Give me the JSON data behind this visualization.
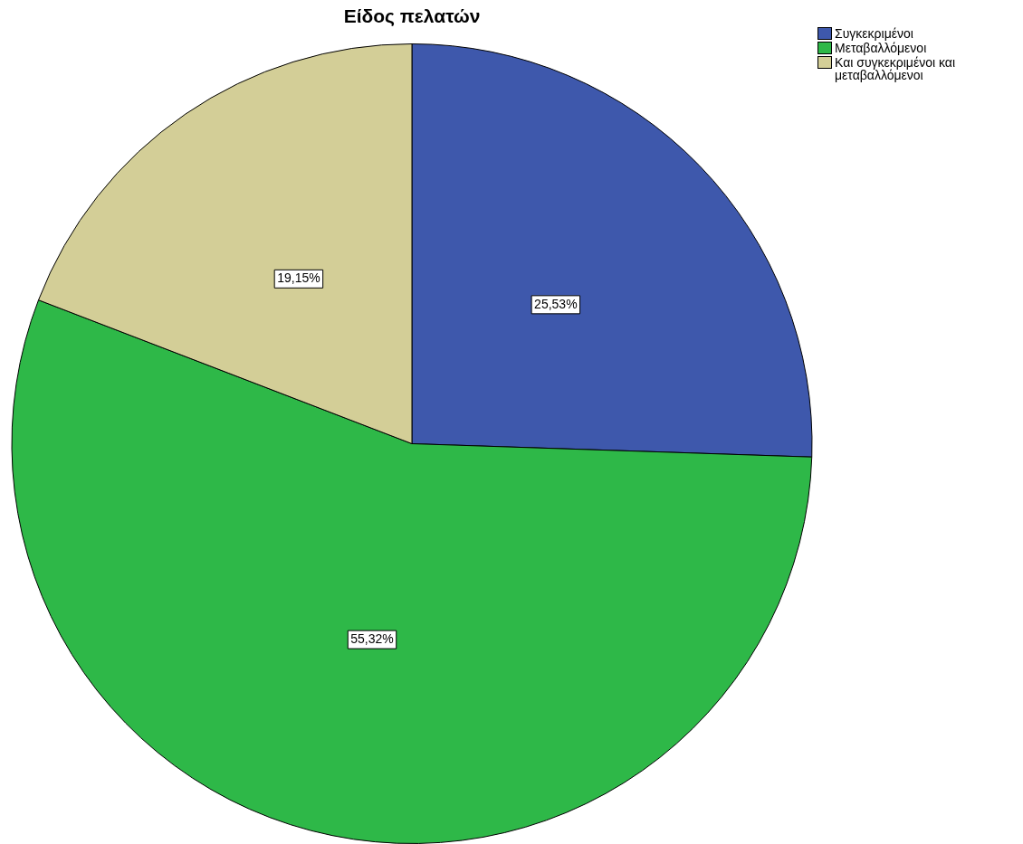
{
  "chart_data": {
    "type": "pie",
    "title": "Είδος πελατών",
    "categories": [
      "Συγκεκριμένοι",
      "Μεταβαλλόμενοι",
      "Και συγκεκριμένοι και μεταβαλλόμενοι"
    ],
    "values": [
      25.53,
      55.32,
      19.15
    ],
    "colors": [
      "#3e58ac",
      "#2eb848",
      "#d3ce97"
    ],
    "value_labels": [
      "25,53%",
      "55,32%",
      "19,15%"
    ],
    "legend": "top right"
  }
}
